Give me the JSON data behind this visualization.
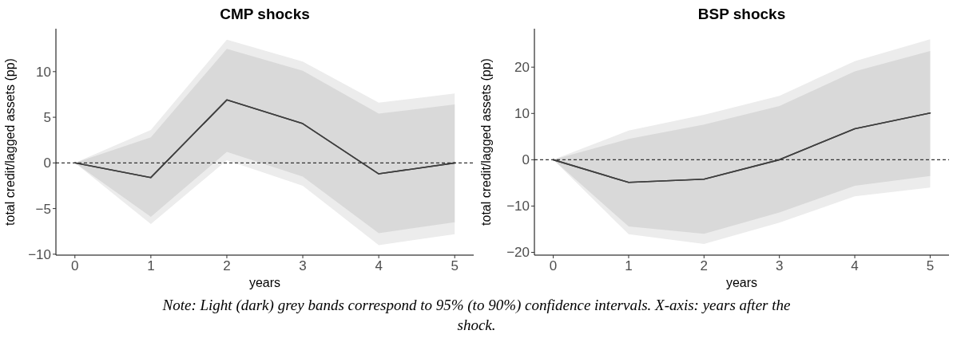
{
  "chart_data": [
    {
      "type": "line",
      "title": "CMP shocks",
      "xlabel": "years",
      "ylabel": "total credit/lagged assets (pp)",
      "x": [
        0,
        1,
        2,
        3,
        4,
        5
      ],
      "xlim": [
        -0.25,
        5.25
      ],
      "xticks": [
        0,
        1,
        2,
        3,
        4,
        5
      ],
      "ylim": [
        -10.1,
        14.7
      ],
      "yticks": [
        {
          "value": -10,
          "label": "−10"
        },
        {
          "value": -5,
          "label": "−5"
        },
        0,
        5,
        10
      ],
      "grid": false,
      "ref_lines": [
        {
          "axis": "y",
          "value": 0,
          "color": "#333333",
          "line_style": "dashed"
        }
      ],
      "series": [
        {
          "type": "line",
          "color": "#404040",
          "values": [
            0,
            -1.6,
            6.9,
            4.3,
            -1.2,
            0
          ],
          "lower": [
            0,
            -6.7,
            0.3,
            -2.5,
            -9.0,
            -7.8
          ],
          "upper": [
            0,
            3.6,
            13.5,
            11.1,
            6.6,
            7.6
          ]
        },
        {
          "type": "line",
          "color": "#404040",
          "values": [
            0,
            -1.6,
            6.9,
            4.3,
            -1.2,
            0
          ],
          "lower": [
            0,
            -5.9,
            1.2,
            -1.5,
            -7.7,
            -6.5
          ],
          "upper": [
            0,
            2.8,
            12.5,
            10.1,
            5.4,
            6.4
          ]
        }
      ],
      "annotations": [
        "Note: Light (dark) grey bands correspond to 95% (to 90%) confidence intervals. X-axis: years after the shock."
      ]
    },
    {
      "type": "line",
      "title": "BSP shocks",
      "xlabel": "years",
      "ylabel": "total credit/lagged assets (pp)",
      "x": [
        0,
        1,
        2,
        3,
        4,
        5
      ],
      "xlim": [
        -0.25,
        5.25
      ],
      "xticks": [
        0,
        1,
        2,
        3,
        4,
        5
      ],
      "ylim": [
        -20.6,
        28.3
      ],
      "yticks": [
        {
          "value": -20,
          "label": "−20"
        },
        {
          "value": -10,
          "label": "−10"
        },
        0,
        10,
        20
      ],
      "grid": false,
      "ref_lines": [
        {
          "axis": "y",
          "value": 0,
          "color": "#333333",
          "line_style": "dashed"
        }
      ],
      "series": [
        {
          "type": "line",
          "color": "#404040",
          "values": [
            0,
            -4.9,
            -4.2,
            0,
            6.7,
            10.1
          ],
          "lower": [
            0,
            -16.1,
            -18.2,
            -13.6,
            -7.9,
            -6.0
          ],
          "upper": [
            0,
            6.3,
            9.7,
            13.8,
            21.3,
            26.0
          ]
        },
        {
          "type": "line",
          "color": "#404040",
          "values": [
            0,
            -4.9,
            -4.2,
            0,
            6.7,
            10.1
          ],
          "lower": [
            0,
            -14.4,
            -16.0,
            -11.4,
            -5.6,
            -3.5
          ],
          "upper": [
            0,
            4.5,
            7.6,
            11.6,
            19.1,
            23.5
          ]
        }
      ]
    }
  ]
}
